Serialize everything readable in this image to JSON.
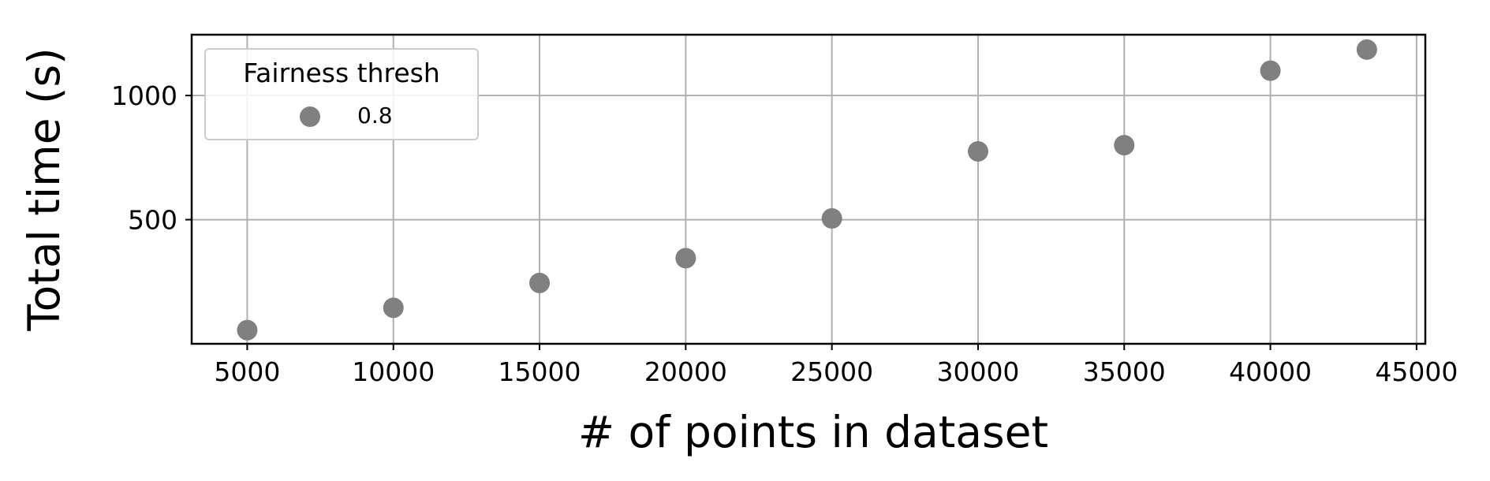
{
  "chart_data": {
    "type": "scatter",
    "title": "",
    "xlabel": "# of points in dataset",
    "ylabel": "Total time (s)",
    "xlim": [
      3100,
      45300
    ],
    "ylim": [
      0,
      1245
    ],
    "xticks": [
      5000,
      10000,
      15000,
      20000,
      25000,
      30000,
      35000,
      40000,
      45000
    ],
    "yticks": [
      500,
      1000
    ],
    "grid": true,
    "legend": {
      "title": "Fairness thresh",
      "placement": "top-left"
    },
    "series": [
      {
        "name": "0.8",
        "color": "#808080",
        "x": [
          5000,
          10000,
          15000,
          20000,
          25000,
          30000,
          35000,
          40000,
          43300
        ],
        "y": [
          55,
          145,
          245,
          345,
          505,
          775,
          800,
          1100,
          1185
        ]
      }
    ]
  }
}
